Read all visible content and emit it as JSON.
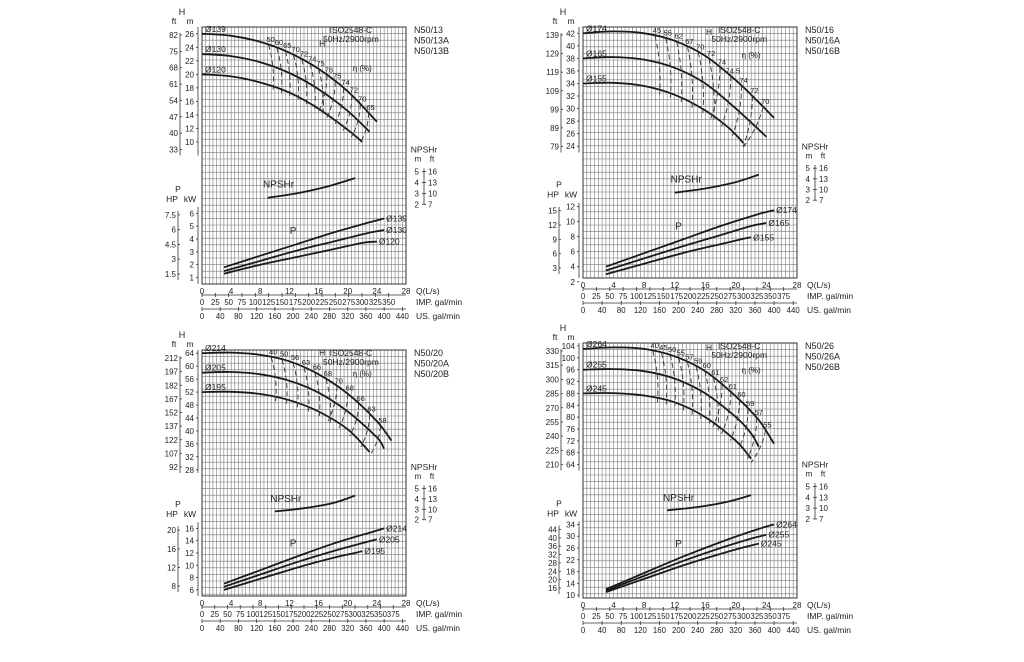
{
  "chart_data": [
    {
      "type": "line",
      "models": [
        "N50/13",
        "N50/13A",
        "N50/13B"
      ],
      "standard": "ISO2548-C",
      "speed": "50Hz/2900rpm",
      "x_label": "Q(L/s)",
      "x_ticks": [
        0,
        4,
        8,
        12,
        16,
        20,
        24,
        28
      ],
      "imp_label": "IMP. gal/min",
      "imp_ticks": [
        "0",
        "25",
        "50",
        "75",
        "100",
        "125",
        "150",
        "175",
        "200",
        "225",
        "250",
        "275",
        "300",
        "325",
        "350"
      ],
      "us_label": "US. gal/min",
      "us_ticks": [
        "0",
        "40",
        "80",
        "120",
        "160",
        "200",
        "240",
        "280",
        "320",
        "360",
        "400",
        "440"
      ],
      "head": {
        "label_ft": "ft",
        "label_m": "m",
        "label_H": "H",
        "ylim": [
          8,
          27
        ],
        "m_ticks": [
          "10",
          "12",
          "14",
          "16",
          "18",
          "20",
          "22",
          "24",
          "26"
        ],
        "ft_ticks": [
          "33",
          "40",
          "47",
          "54",
          "61",
          "68",
          "75",
          "82"
        ],
        "curve_label": "H",
        "series": [
          {
            "name": "Ø139",
            "x": [
              0,
              4,
              8,
              12,
              16,
              20,
              24
            ],
            "y": [
              26,
              25.7,
              24.8,
              23.2,
              20.8,
              17.5,
              13
            ]
          },
          {
            "name": "Ø130",
            "x": [
              0,
              4,
              8,
              12,
              16,
              20,
              23
            ],
            "y": [
              23,
              22.7,
              21.8,
              20.2,
              17.8,
              14.6,
              11.5
            ]
          },
          {
            "name": "Ø120",
            "x": [
              0,
              4,
              8,
              12,
              16,
              20,
              22
            ],
            "y": [
              20,
              19.7,
              18.8,
              17.3,
              14.9,
              11.8,
              10
            ]
          }
        ]
      },
      "efficiency": {
        "label": "η (%)",
        "values": [
          "50",
          "60",
          "65",
          "70",
          "72",
          "74",
          "75",
          "76",
          "75",
          "74",
          "72",
          "70",
          "65"
        ]
      },
      "npshr": {
        "label": "NPSHr",
        "ylim": [
          2,
          6
        ],
        "m_ticks": [
          "2",
          "3",
          "4",
          "5"
        ],
        "ft_ticks": [
          "7",
          "10",
          "13",
          "16"
        ],
        "label_m": "m",
        "label_ft": "ft",
        "series": [
          {
            "x": [
              9,
              13,
              17,
              21
            ],
            "y": [
              2.6,
              3,
              3.6,
              4.4
            ]
          }
        ]
      },
      "power": {
        "label": "P",
        "ylim": [
          0.5,
          6.5
        ],
        "kw_ticks": [
          "1",
          "2",
          "3",
          "4",
          "5",
          "6"
        ],
        "hp_ticks": [
          "1.5",
          "3",
          "4.5",
          "6",
          "7.5"
        ],
        "label_HP": "HP",
        "label_kW": "kW",
        "series": [
          {
            "name": "Ø139",
            "x": [
              3,
              8,
              13,
              18,
              23,
              25
            ],
            "y": [
              1.8,
              2.7,
              3.6,
              4.5,
              5.3,
              5.6
            ]
          },
          {
            "name": "Ø130",
            "x": [
              3,
              8,
              13,
              18,
              23,
              25
            ],
            "y": [
              1.5,
              2.3,
              3.1,
              3.8,
              4.5,
              4.7
            ]
          },
          {
            "name": "Ø120",
            "x": [
              3,
              8,
              13,
              18,
              22,
              24
            ],
            "y": [
              1.3,
              2,
              2.6,
              3.2,
              3.7,
              3.8
            ]
          }
        ]
      }
    },
    {
      "type": "line",
      "models": [
        "N50/16",
        "N50/16A",
        "N50/16B"
      ],
      "standard": "ISO2548-C",
      "speed": "50Hz/2900rpm",
      "x_label": "Q(L/s)",
      "x_ticks": [
        0,
        4,
        8,
        12,
        16,
        20,
        24,
        28
      ],
      "imp_label": "IMP. gal/min",
      "imp_ticks": [
        "0",
        "25",
        "50",
        "75",
        "100",
        "125",
        "150",
        "175",
        "200",
        "225",
        "250",
        "275",
        "300",
        "325",
        "350",
        "375"
      ],
      "us_label": "US. gal/min",
      "us_ticks": [
        "0",
        "40",
        "80",
        "120",
        "160",
        "200",
        "240",
        "280",
        "320",
        "360",
        "400",
        "440"
      ],
      "head": {
        "label_ft": "ft",
        "label_m": "m",
        "label_H": "H",
        "ylim": [
          23,
          43
        ],
        "m_ticks": [
          "24",
          "26",
          "28",
          "30",
          "32",
          "34",
          "36",
          "38",
          "40",
          "42"
        ],
        "ft_ticks": [
          "79",
          "89",
          "99",
          "109",
          "119",
          "129",
          "139"
        ],
        "curve_label": "H",
        "series": [
          {
            "name": "Ø174",
            "x": [
              0,
              4,
              8,
              12,
              16,
              20,
              23,
              25
            ],
            "y": [
              42,
              42.3,
              42,
              40.8,
              38.4,
              34.5,
              31,
              28.5
            ]
          },
          {
            "name": "Ø165",
            "x": [
              0,
              4,
              8,
              12,
              16,
              20,
              24
            ],
            "y": [
              38,
              38.2,
              37.8,
              36.5,
              34,
              30,
              25.5
            ]
          },
          {
            "name": "Ø155",
            "x": [
              0,
              4,
              8,
              12,
              16,
              19,
              21
            ],
            "y": [
              34,
              34.1,
              33.6,
              32.2,
              29.7,
              27,
              24.5
            ]
          }
        ]
      },
      "efficiency": {
        "label": "η (%)",
        "values": [
          "45",
          "55",
          "62",
          "67",
          "70",
          "72",
          "74",
          "74.5",
          "74",
          "72",
          "70"
        ]
      },
      "npshr": {
        "label": "NPSHr",
        "ylim": [
          2,
          6
        ],
        "m_ticks": [
          "2",
          "3",
          "4",
          "5"
        ],
        "ft_ticks": [
          "7",
          "10",
          "13",
          "16"
        ],
        "label_m": "m",
        "label_ft": "ft",
        "series": [
          {
            "x": [
              12,
              16,
              20,
              23
            ],
            "y": [
              2.7,
              3.1,
              3.7,
              4.4
            ]
          }
        ]
      },
      "power": {
        "label": "P",
        "ylim": [
          2.5,
          12.5
        ],
        "kw_ticks": [
          "2",
          "4",
          "6",
          "8",
          "10",
          "12"
        ],
        "hp_ticks": [
          "3",
          "6",
          "9",
          "12",
          "15"
        ],
        "label_HP": "HP",
        "label_kW": "kW",
        "series": [
          {
            "name": "Ø174",
            "x": [
              3,
              8,
              13,
              18,
              23,
              25
            ],
            "y": [
              4,
              5.8,
              7.6,
              9.4,
              11,
              11.5
            ]
          },
          {
            "name": "Ø165",
            "x": [
              3,
              8,
              13,
              18,
              22,
              24
            ],
            "y": [
              3.5,
              5.1,
              6.7,
              8.2,
              9.4,
              9.8
            ]
          },
          {
            "name": "Ø155",
            "x": [
              3,
              8,
              13,
              18,
              21,
              22
            ],
            "y": [
              3,
              4.4,
              5.8,
              7,
              7.7,
              7.9
            ]
          }
        ]
      }
    },
    {
      "type": "line",
      "models": [
        "N50/20",
        "N50/20A",
        "N50/20B"
      ],
      "standard": "ISO2548-C",
      "speed": "50Hz/2900rpm",
      "x_label": "Q(L/s)",
      "x_ticks": [
        0,
        4,
        8,
        12,
        16,
        20,
        24,
        28
      ],
      "imp_label": "IMP. gal/min",
      "imp_ticks": [
        "0",
        "25",
        "50",
        "75",
        "100",
        "125",
        "150",
        "175",
        "200",
        "225",
        "250",
        "275",
        "300",
        "325",
        "350",
        "375"
      ],
      "us_label": "US. gal/min",
      "us_ticks": [
        "0",
        "40",
        "80",
        "120",
        "160",
        "200",
        "240",
        "280",
        "320",
        "360",
        "400",
        "440"
      ],
      "head": {
        "label_ft": "ft",
        "label_m": "m",
        "label_H": "H",
        "ylim": [
          27,
          65
        ],
        "m_ticks": [
          "28",
          "32",
          "36",
          "40",
          "44",
          "48",
          "52",
          "56",
          "60",
          "64"
        ],
        "ft_ticks": [
          "92",
          "107",
          "122",
          "137",
          "152",
          "167",
          "182",
          "197",
          "212"
        ],
        "curve_label": "H",
        "series": [
          {
            "name": "Ø214",
            "x": [
              0,
              4,
              8,
              12,
              16,
              20,
              24,
              26
            ],
            "y": [
              64,
              64.2,
              63.5,
              61.5,
              57.5,
              51.5,
              43,
              37
            ]
          },
          {
            "name": "Ø205",
            "x": [
              0,
              4,
              8,
              12,
              16,
              20,
              24,
              25
            ],
            "y": [
              58,
              58.2,
              57.5,
              55.5,
              51.8,
              46,
              38,
              34.5
            ]
          },
          {
            "name": "Ø195",
            "x": [
              0,
              4,
              8,
              12,
              16,
              20,
              23
            ],
            "y": [
              52,
              52.1,
              51.4,
              49.5,
              46,
              40.5,
              33.5
            ]
          }
        ]
      },
      "efficiency": {
        "label": "η (%)",
        "values": [
          "40",
          "50",
          "56",
          "63",
          "66",
          "68",
          "70",
          "68",
          "66",
          "63",
          "58"
        ]
      },
      "npshr": {
        "label": "NPSHr",
        "ylim": [
          2,
          6
        ],
        "m_ticks": [
          "2",
          "3",
          "4",
          "5"
        ],
        "ft_ticks": [
          "7",
          "10",
          "13",
          "16"
        ],
        "label_m": "m",
        "label_ft": "ft",
        "series": [
          {
            "x": [
              10,
              14,
              18,
              21
            ],
            "y": [
              2.8,
              3.1,
              3.6,
              4.3
            ]
          }
        ]
      },
      "power": {
        "label": "P",
        "ylim": [
          5,
          17
        ],
        "kw_ticks": [
          "6",
          "8",
          "10",
          "12",
          "14",
          "16"
        ],
        "hp_ticks": [
          "8",
          "12",
          "16",
          "20"
        ],
        "label_HP": "HP",
        "label_kW": "kW",
        "series": [
          {
            "name": "Ø214",
            "x": [
              3,
              8,
              13,
              18,
              23,
              25
            ],
            "y": [
              7,
              9.2,
              11.4,
              13.5,
              15.3,
              16
            ]
          },
          {
            "name": "Ø205",
            "x": [
              3,
              8,
              13,
              18,
              22,
              24
            ],
            "y": [
              6.5,
              8.5,
              10.5,
              12.3,
              13.6,
              14.2
            ]
          },
          {
            "name": "Ø195",
            "x": [
              3,
              8,
              13,
              18,
              21,
              22
            ],
            "y": [
              6,
              7.8,
              9.6,
              11.2,
              12,
              12.3
            ]
          }
        ]
      }
    },
    {
      "type": "line",
      "models": [
        "N50/26",
        "N50/26A",
        "N50/26B"
      ],
      "standard": "ISO2548-C",
      "speed": "50Hz/2900rpm",
      "x_label": "Q(L/s)",
      "x_ticks": [
        0,
        4,
        8,
        12,
        16,
        20,
        24,
        28
      ],
      "imp_label": "IMP. gal/min",
      "imp_ticks": [
        "0",
        "25",
        "50",
        "75",
        "100",
        "125",
        "150",
        "175",
        "200",
        "225",
        "250",
        "275",
        "300",
        "325",
        "350",
        "375"
      ],
      "us_label": "US. gal/min",
      "us_ticks": [
        "0",
        "40",
        "80",
        "120",
        "160",
        "200",
        "240",
        "280",
        "320",
        "360",
        "400",
        "440"
      ],
      "head": {
        "label_ft": "ft",
        "label_m": "m",
        "label_H": "H",
        "ylim": [
          62,
          105
        ],
        "m_ticks": [
          "64",
          "68",
          "72",
          "76",
          "80",
          "84",
          "88",
          "92",
          "96",
          "100",
          "104"
        ],
        "ft_ticks": [
          "210",
          "225",
          "240",
          "255",
          "270",
          "285",
          "300",
          "315",
          "330"
        ],
        "curve_label": "H",
        "series": [
          {
            "name": "Ø264",
            "x": [
              0,
              4,
              8,
              12,
              16,
              20,
              23,
              25
            ],
            "y": [
              103,
              103.5,
              103,
              100.5,
              95.5,
              87,
              79,
              71
            ]
          },
          {
            "name": "Ø255",
            "x": [
              0,
              4,
              8,
              12,
              16,
              20,
              22,
              23
            ],
            "y": [
              96,
              96.2,
              95.5,
              93,
              88,
              80,
              74.5,
              70
            ]
          },
          {
            "name": "Ø245",
            "x": [
              0,
              4,
              8,
              12,
              16,
              20,
              22
            ],
            "y": [
              88,
              88.1,
              87.3,
              85,
              80,
              72,
              66
            ]
          }
        ]
      },
      "efficiency": {
        "label": "η (%)",
        "values": [
          "40",
          "45",
          "50",
          "55",
          "57",
          "59",
          "60",
          "61",
          "62",
          "61",
          "60",
          "59",
          "57",
          "55"
        ]
      },
      "npshr": {
        "label": "NPSHr",
        "ylim": [
          2,
          6
        ],
        "m_ticks": [
          "2",
          "3",
          "4",
          "5"
        ],
        "ft_ticks": [
          "7",
          "10",
          "13",
          "16"
        ],
        "label_m": "m",
        "label_ft": "ft",
        "series": [
          {
            "x": [
              11,
              15,
              19,
              22
            ],
            "y": [
              2.8,
              3.1,
              3.6,
              4.2
            ]
          }
        ]
      },
      "power": {
        "label": "P",
        "ylim": [
          9,
          35
        ],
        "kw_ticks": [
          "10",
          "14",
          "18",
          "22",
          "26",
          "30",
          "34"
        ],
        "hp_ticks": [
          "16",
          "20",
          "24",
          "28",
          "32",
          "36",
          "40",
          "44"
        ],
        "label_HP": "HP",
        "label_kW": "kW",
        "series": [
          {
            "name": "Ø264",
            "x": [
              3,
              8,
              13,
              18,
              23,
              25
            ],
            "y": [
              12,
              17.5,
              23,
              28,
              32.5,
              34
            ]
          },
          {
            "name": "Ø255",
            "x": [
              3,
              8,
              13,
              18,
              22,
              24
            ],
            "y": [
              11.5,
              16.5,
              21.5,
              26,
              29.2,
              30.5
            ]
          },
          {
            "name": "Ø245",
            "x": [
              3,
              8,
              13,
              18,
              21,
              23
            ],
            "y": [
              11,
              15.5,
              20,
              24,
              26.2,
              27.5
            ]
          }
        ]
      }
    }
  ]
}
